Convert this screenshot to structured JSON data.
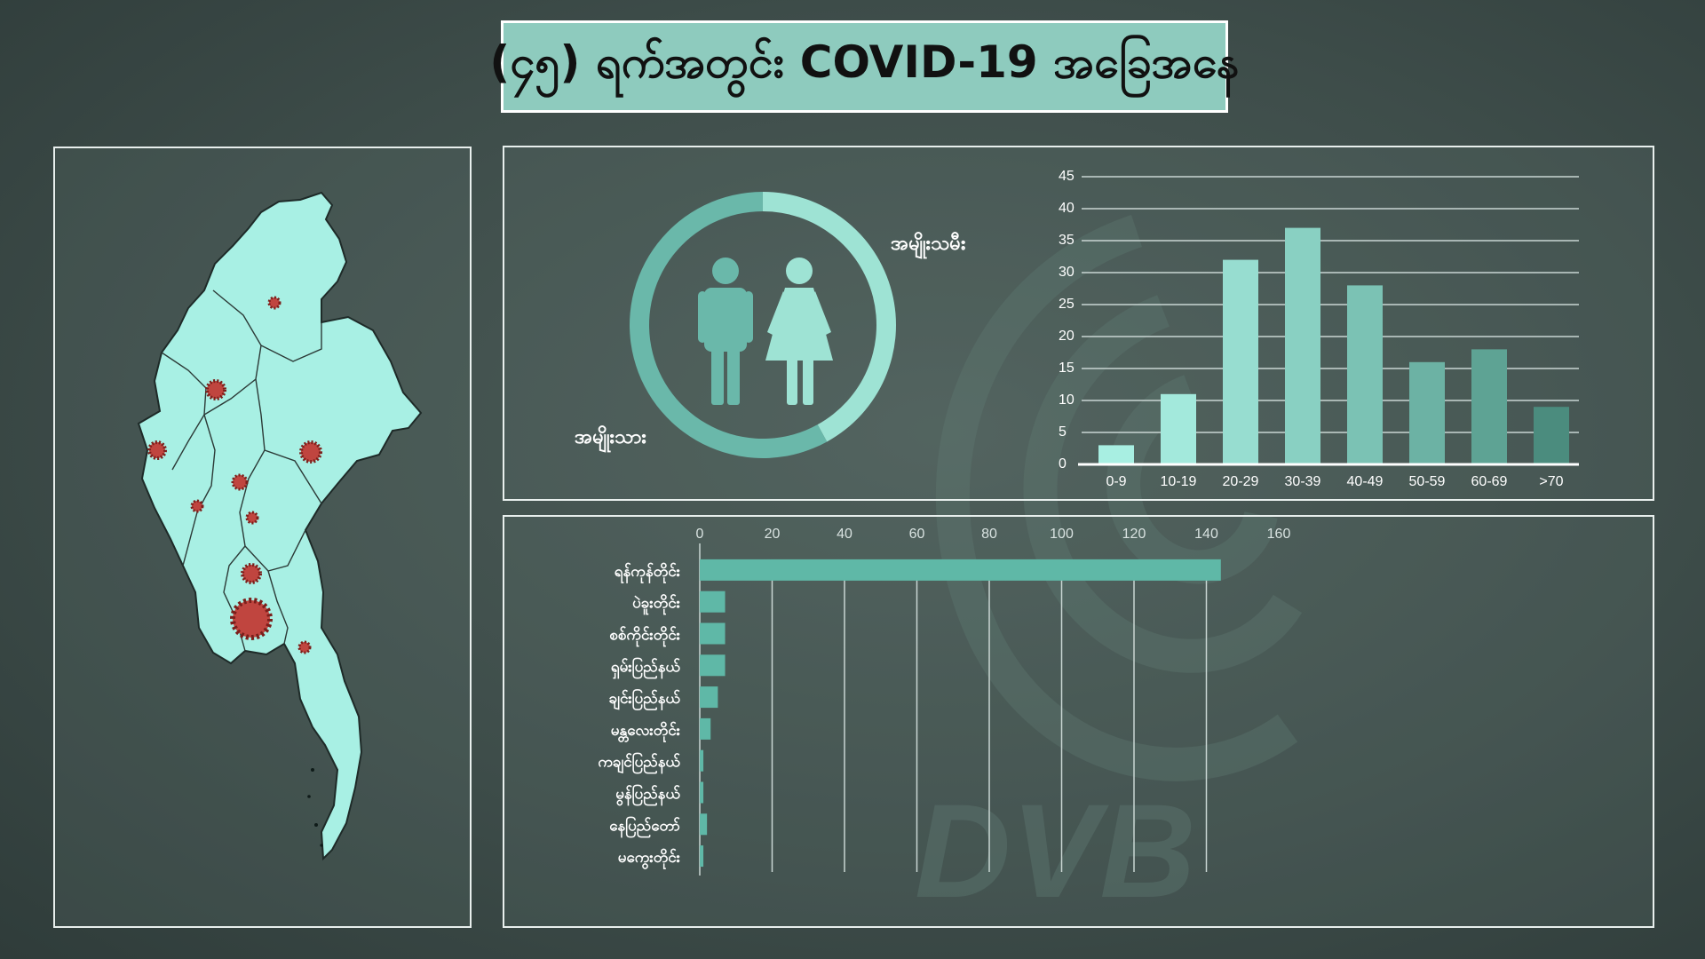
{
  "title": "(၄၅) ရက်အတွင်း COVID-19 အခြေအနေ",
  "brand": "DVB",
  "colors": {
    "accent": "#8ecbbe",
    "donut_male": "#6ab8aa",
    "donut_female": "#9ee3d4",
    "map_fill": "#a8f0e4",
    "virus": "#c0453f"
  },
  "gender": {
    "male_label": "အမျိုးသား",
    "female_label": "အမျိုးသမီး",
    "male_share": 0.58,
    "female_share": 0.42,
    "icons": [
      "male-icon",
      "female-icon"
    ]
  },
  "chart_data": [
    {
      "type": "bar",
      "categories": [
        "0-9",
        "10-19",
        "20-29",
        "30-39",
        "40-49",
        "50-59",
        "60-69",
        ">70"
      ],
      "values": [
        3,
        11,
        32,
        37,
        28,
        16,
        18,
        9
      ],
      "ylim": [
        0,
        45
      ],
      "yticks": [
        0,
        5,
        10,
        15,
        20,
        25,
        30,
        35,
        40,
        45
      ],
      "grid": true,
      "colors": [
        "#a8efe2",
        "#a3e9dc",
        "#97ddd0",
        "#89d0c2",
        "#7bc2b4",
        "#6cb2a4",
        "#5ea394",
        "#4b8c7e"
      ]
    },
    {
      "type": "bar",
      "orientation": "horizontal",
      "categories": [
        "ရန်ကုန်တိုင်း",
        "ပဲခူးတိုင်း",
        "စစ်ကိုင်းတိုင်း",
        "ရှမ်းပြည်နယ်",
        "ချင်းပြည်နယ်",
        "မန္တလေးတိုင်း",
        "ကချင်ပြည်နယ်",
        "မွန်ပြည်နယ်",
        "နေပြည်တော်",
        "မကွေးတိုင်း"
      ],
      "values": [
        144,
        7,
        7,
        7,
        5,
        3,
        1,
        1,
        2,
        1
      ],
      "xlim": [
        0,
        160
      ],
      "xticks": [
        0,
        20,
        40,
        60,
        80,
        100,
        120,
        140,
        160
      ],
      "grid": true,
      "color": "#5fb8a7"
    }
  ]
}
